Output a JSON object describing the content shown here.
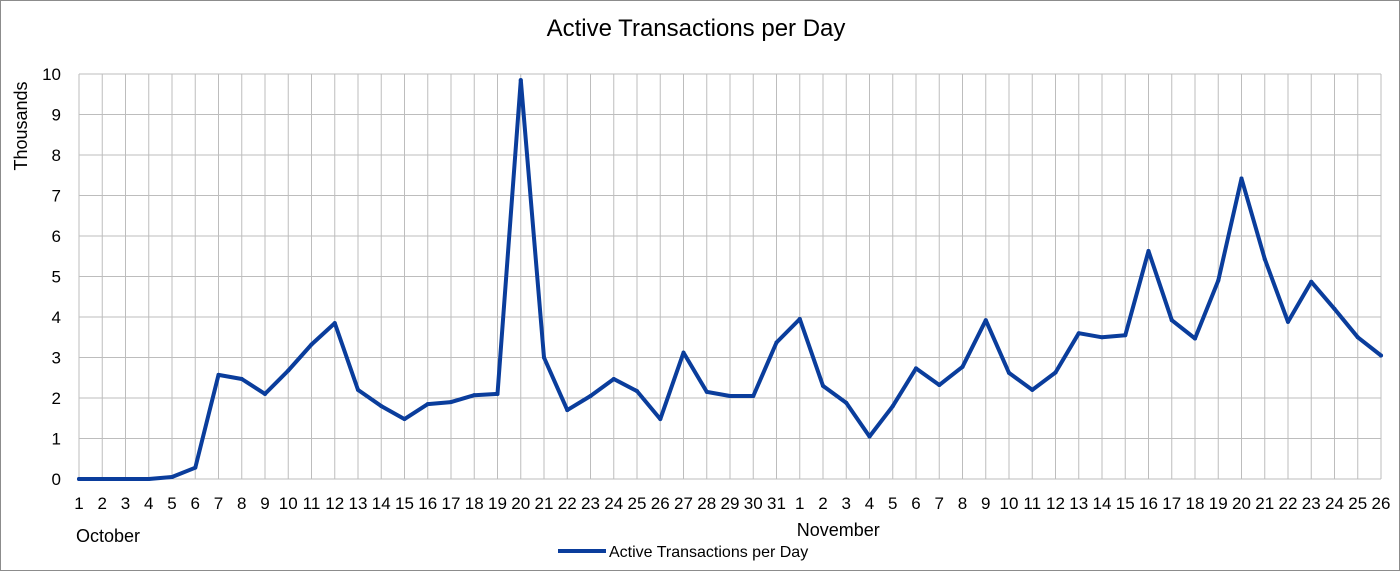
{
  "chart_data": {
    "type": "line",
    "title": "Active Transactions per Day",
    "ylabel": "Thousands",
    "xlabel": "",
    "ylim": [
      0,
      10
    ],
    "yticks": [
      0,
      1,
      2,
      3,
      4,
      5,
      6,
      7,
      8,
      9,
      10
    ],
    "grid": true,
    "legend_position": "bottom",
    "series_color": "#0a3d9c",
    "months": [
      {
        "label": "October",
        "start_index": 0
      },
      {
        "label": "November",
        "start_index": 31
      }
    ],
    "categories": [
      "1",
      "2",
      "3",
      "4",
      "5",
      "6",
      "7",
      "8",
      "9",
      "10",
      "11",
      "12",
      "13",
      "14",
      "15",
      "16",
      "17",
      "18",
      "19",
      "20",
      "21",
      "22",
      "23",
      "24",
      "25",
      "26",
      "27",
      "28",
      "29",
      "30",
      "31",
      "1",
      "2",
      "3",
      "4",
      "5",
      "6",
      "7",
      "8",
      "9",
      "10",
      "11",
      "12",
      "13",
      "14",
      "15",
      "16",
      "17",
      "18",
      "19",
      "20",
      "21",
      "22",
      "23",
      "24",
      "25",
      "26"
    ],
    "series": [
      {
        "name": "Active Transactions per Day",
        "values": [
          0,
          0,
          0,
          0,
          0.05,
          0.28,
          2.57,
          2.47,
          2.1,
          2.68,
          3.32,
          3.85,
          2.2,
          1.8,
          1.48,
          1.85,
          1.9,
          2.07,
          2.1,
          9.85,
          3.0,
          1.7,
          2.05,
          2.47,
          2.17,
          1.48,
          3.12,
          2.15,
          2.05,
          2.05,
          3.37,
          3.95,
          2.3,
          1.88,
          1.05,
          1.8,
          2.73,
          2.32,
          2.77,
          3.92,
          2.62,
          2.2,
          2.63,
          3.6,
          3.5,
          3.55,
          5.63,
          3.92,
          3.47,
          4.9,
          7.42,
          5.43,
          3.88,
          4.87,
          4.2,
          3.5,
          3.05
        ]
      }
    ]
  }
}
